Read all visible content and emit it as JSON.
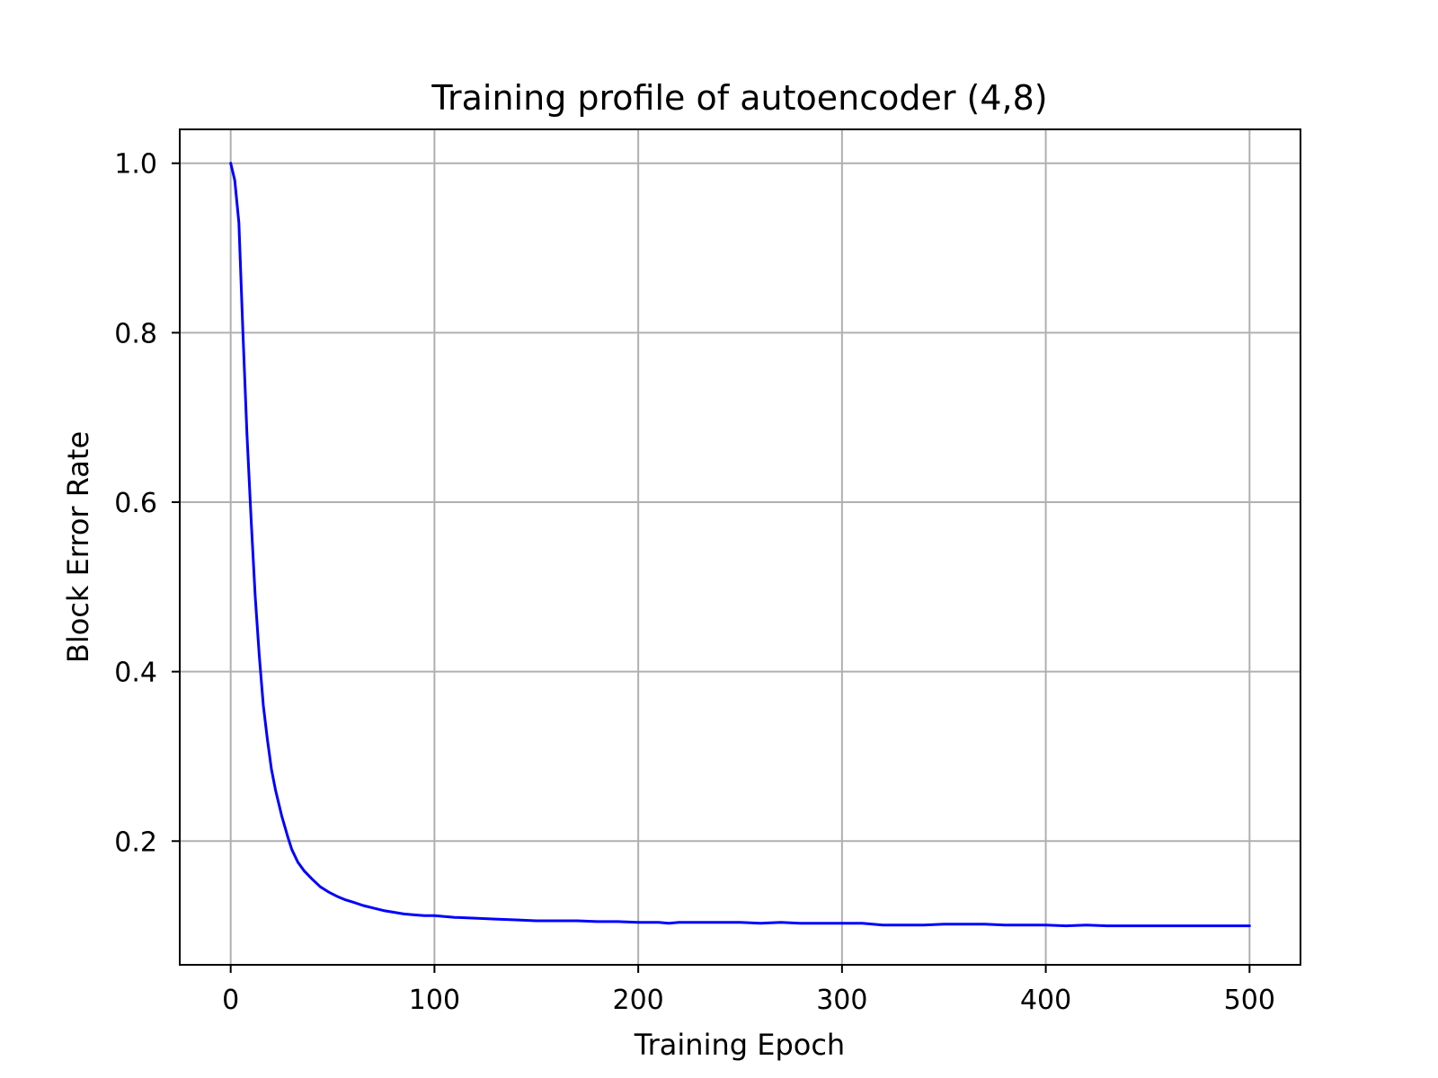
{
  "chart_data": {
    "type": "line",
    "title": "Training profile of autoencoder (4,8)",
    "xlabel": "Training Epoch",
    "ylabel": "Block Error Rate",
    "xlim": [
      -25,
      525
    ],
    "ylim": [
      0.054,
      1.04
    ],
    "xticks": [
      0,
      100,
      200,
      300,
      400,
      500
    ],
    "xtick_labels": [
      "0",
      "100",
      "200",
      "300",
      "400",
      "500"
    ],
    "yticks": [
      0.2,
      0.4,
      0.6,
      0.8,
      1.0
    ],
    "ytick_labels": [
      "0.2",
      "0.4",
      "0.6",
      "0.8",
      "1.0"
    ],
    "grid": true,
    "legend": "none",
    "series": [
      {
        "color": "#0000ff",
        "x": [
          0,
          2,
          4,
          6,
          8,
          10,
          12,
          14,
          16,
          18,
          20,
          22,
          25,
          28,
          30,
          33,
          36,
          40,
          44,
          48,
          52,
          56,
          60,
          65,
          70,
          75,
          80,
          85,
          90,
          95,
          100,
          105,
          110,
          120,
          130,
          140,
          150,
          160,
          170,
          180,
          190,
          200,
          210,
          215,
          220,
          230,
          240,
          250,
          260,
          270,
          280,
          290,
          300,
          310,
          320,
          330,
          340,
          350,
          360,
          370,
          380,
          390,
          400,
          410,
          420,
          430,
          440,
          450,
          460,
          470,
          480,
          490,
          500
        ],
        "y": [
          1.0,
          0.98,
          0.93,
          0.8,
          0.68,
          0.58,
          0.49,
          0.42,
          0.36,
          0.32,
          0.285,
          0.26,
          0.23,
          0.205,
          0.19,
          0.175,
          0.165,
          0.155,
          0.146,
          0.14,
          0.135,
          0.131,
          0.128,
          0.124,
          0.121,
          0.118,
          0.116,
          0.114,
          0.113,
          0.112,
          0.112,
          0.111,
          0.11,
          0.109,
          0.108,
          0.107,
          0.106,
          0.106,
          0.106,
          0.105,
          0.105,
          0.104,
          0.104,
          0.103,
          0.104,
          0.104,
          0.104,
          0.104,
          0.103,
          0.104,
          0.103,
          0.103,
          0.103,
          0.103,
          0.101,
          0.101,
          0.101,
          0.102,
          0.102,
          0.102,
          0.101,
          0.101,
          0.101,
          0.1,
          0.101,
          0.1,
          0.1,
          0.1,
          0.1,
          0.1,
          0.1,
          0.1,
          0.1
        ]
      }
    ]
  }
}
